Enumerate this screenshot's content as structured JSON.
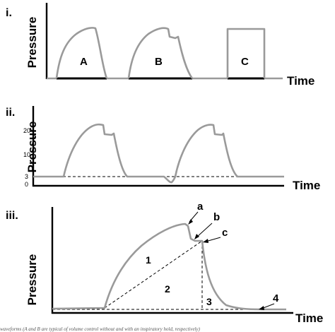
{
  "panels": {
    "p1": {
      "label": "i.",
      "ylabel": "Pressure",
      "xlabel": "Time",
      "waves": [
        "A",
        "B",
        "C"
      ]
    },
    "p2": {
      "label": "ii.",
      "ylabel": "Pressure",
      "xlabel": "Time",
      "yticks": [
        "20",
        "10",
        "3",
        "0"
      ]
    },
    "p3": {
      "label": "iii.",
      "ylabel": "Pressure",
      "xlabel": "Time",
      "points": [
        "a",
        "b",
        "c"
      ],
      "regions": [
        "1",
        "2",
        "3",
        "4"
      ]
    }
  },
  "caption": "waveforms (A and B are typical of volume control without and with an inspiratory hold, respectively)"
}
